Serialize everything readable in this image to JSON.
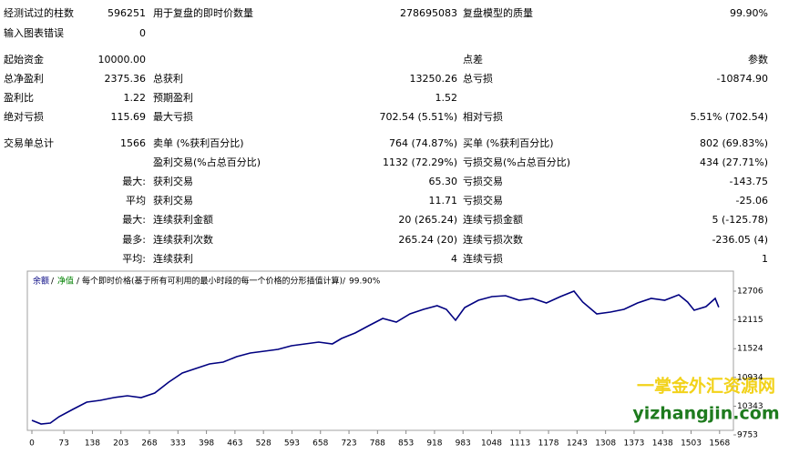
{
  "report": {
    "rows": [
      [
        "经测试过的柱数",
        "596251",
        "用于复盘的即时价数量",
        "278695083",
        "复盘模型的质量",
        "99.90%"
      ],
      [
        "输入图表错误",
        "0",
        null,
        null,
        null,
        null
      ],
      [
        "起始资金",
        "10000.00",
        null,
        null,
        "点差",
        "参数"
      ],
      [
        "总净盈利",
        "2375.36",
        "总获利",
        "13250.26",
        "总亏损",
        "-10874.90"
      ],
      [
        "盈利比",
        "1.22",
        "预期盈利",
        "1.52",
        null,
        null
      ],
      [
        "绝对亏损",
        "115.69",
        "最大亏损",
        "702.54 (5.51%)",
        "相对亏损",
        "5.51% (702.54)"
      ],
      [
        "交易单总计",
        "1566",
        "卖单 (%获利百分比)",
        "764 (74.87%)",
        "买单 (%获利百分比)",
        "802 (69.83%)"
      ],
      [
        null,
        null,
        "盈利交易(%占总百分比)",
        "1132 (72.29%)",
        "亏损交易(%占总百分比)",
        "434 (27.71%)"
      ],
      [
        null,
        "最大:",
        "获利交易",
        "65.30",
        "亏损交易",
        "-143.75"
      ],
      [
        null,
        "平均",
        "获利交易",
        "11.71",
        "亏损交易",
        "-25.06"
      ],
      [
        null,
        "最大:",
        "连续获利金额",
        "20 (265.24)",
        "连续亏损金额",
        "5 (-125.78)"
      ],
      [
        null,
        "最多:",
        "连续获利次数",
        "265.24 (20)",
        "连续亏损次数",
        "-236.05 (4)"
      ],
      [
        null,
        "平均:",
        "连续获利",
        "4",
        "连续亏损",
        "1"
      ]
    ]
  },
  "chart_data": {
    "type": "line",
    "legend_equity": "净值",
    "subtitle": "每个即时价格(基于所有可利用的最小时段的每一个价格的分形插值计算)",
    "quality": "99.90%",
    "x": [
      0,
      21,
      42,
      62,
      93,
      125,
      156,
      187,
      218,
      249,
      280,
      312,
      343,
      374,
      405,
      436,
      467,
      498,
      530,
      561,
      592,
      623,
      654,
      685,
      706,
      737,
      768,
      800,
      831,
      862,
      893,
      924,
      945,
      966,
      987,
      1018,
      1049,
      1080,
      1111,
      1142,
      1173,
      1205,
      1236,
      1256,
      1288,
      1319,
      1350,
      1381,
      1412,
      1443,
      1475,
      1495,
      1510,
      1537,
      1558,
      1566
    ],
    "series": [
      {
        "name": "余额",
        "color": "#000080",
        "values": [
          10052,
          9977,
          9996,
          10127,
          10276,
          10426,
          10463,
          10519,
          10557,
          10519,
          10613,
          10837,
          11024,
          11117,
          11211,
          11248,
          11360,
          11435,
          11472,
          11510,
          11585,
          11622,
          11659,
          11622,
          11734,
          11846,
          11996,
          12146,
          12071,
          12239,
          12332,
          12407,
          12332,
          12108,
          12370,
          12519,
          12594,
          12613,
          12519,
          12557,
          12463,
          12594,
          12706,
          12482,
          12239,
          12276,
          12332,
          12463,
          12557,
          12519,
          12631,
          12482,
          12314,
          12388,
          12557,
          12375
        ]
      }
    ],
    "xlim": [
      0,
      1585
    ],
    "ylim": [
      9753,
      13080
    ],
    "xticks": [
      0,
      73,
      138,
      203,
      268,
      333,
      398,
      463,
      528,
      593,
      658,
      723,
      788,
      853,
      918,
      983,
      1048,
      1113,
      1178,
      1243,
      1308,
      1373,
      1438,
      1503,
      1568
    ],
    "yticks": [
      9753,
      10343,
      10934,
      11524,
      12115,
      12706
    ]
  },
  "watermark": {
    "title": "一掌金外汇资源网",
    "url": "yizhangjin.com"
  }
}
